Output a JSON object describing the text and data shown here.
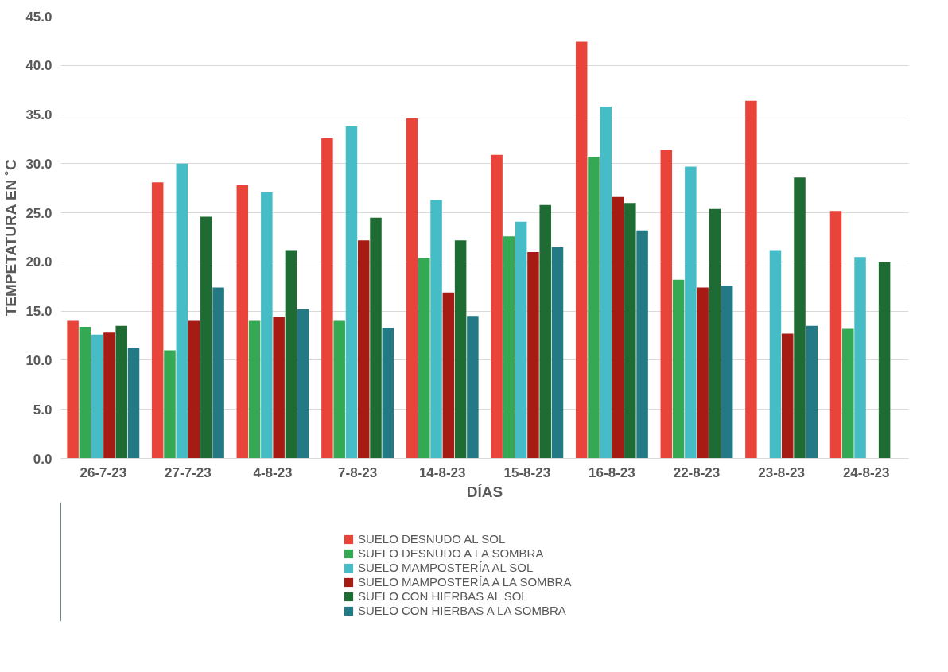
{
  "chart_data": {
    "type": "bar",
    "xlabel": "DÍAS",
    "ylabel": "TEMPETATURA EN ˚C",
    "categories": [
      "26-7-23",
      "27-7-23",
      "4-8-23",
      "7-8-23",
      "14-8-23",
      "15-8-23",
      "16-8-23",
      "22-8-23",
      "23-8-23",
      "24-8-23"
    ],
    "series": [
      {
        "name": "SUELO DESNUDO AL SOL",
        "color": "#e8443a",
        "values": [
          14.0,
          28.1,
          27.8,
          32.6,
          34.6,
          30.9,
          42.4,
          31.4,
          36.4,
          25.2
        ]
      },
      {
        "name": "SUELO DESNUDO A LA SOMBRA",
        "color": "#34a853",
        "values": [
          13.4,
          11.0,
          14.0,
          14.0,
          20.4,
          22.6,
          30.7,
          18.2,
          null,
          13.2
        ]
      },
      {
        "name": "SUELO MAMPOSTERÍA AL SOL",
        "color": "#46bdc6",
        "values": [
          12.6,
          30.0,
          27.1,
          33.8,
          26.3,
          24.1,
          35.8,
          29.7,
          21.2,
          20.5
        ]
      },
      {
        "name": "SUELO MAMPOSTERÍA A LA SOMBRA",
        "color": "#a61c14",
        "values": [
          12.8,
          14.0,
          14.4,
          22.2,
          16.9,
          21.0,
          26.6,
          17.4,
          12.7,
          null
        ]
      },
      {
        "name": "SUELO CON HIERBAS AL SOL",
        "color": "#1e6b34",
        "values": [
          13.5,
          24.6,
          21.2,
          24.5,
          22.2,
          25.8,
          26.0,
          25.4,
          28.6,
          20.0
        ]
      },
      {
        "name": "SUELO CON HIERBAS A LA SOMBRA",
        "color": "#237a85",
        "values": [
          11.3,
          17.4,
          15.2,
          13.3,
          14.5,
          21.5,
          23.2,
          17.6,
          13.5,
          null
        ]
      }
    ],
    "ylim": [
      0,
      45
    ],
    "yticks": [
      {
        "value": 0,
        "label": "0.0"
      },
      {
        "value": 5,
        "label": "5.0"
      },
      {
        "value": 10,
        "label": "10.0"
      },
      {
        "value": 15,
        "label": "15.0"
      },
      {
        "value": 20,
        "label": "20.0"
      },
      {
        "value": 25,
        "label": "25.0"
      },
      {
        "value": 30,
        "label": "30.0"
      },
      {
        "value": 35,
        "label": "35.0"
      },
      {
        "value": 40,
        "label": "40.0"
      },
      {
        "value": 45,
        "label": "45.0"
      }
    ],
    "grid": "y",
    "legend": "bottom"
  }
}
